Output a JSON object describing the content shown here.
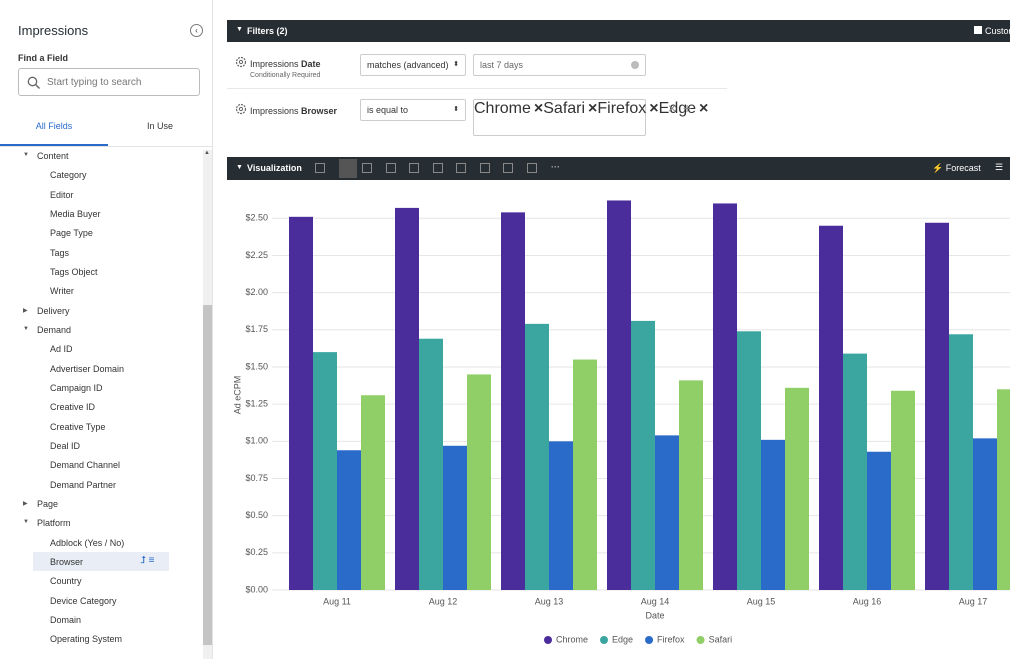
{
  "sidebar": {
    "title": "Impressions",
    "find_label": "Find a Field",
    "search_placeholder": "Start typing to search",
    "tabs": [
      "All Fields",
      "In Use"
    ],
    "groups": [
      {
        "label": "Content",
        "items": [
          "Category",
          "Editor",
          "Media Buyer",
          "Page Type",
          "Tags",
          "Tags Object",
          "Writer"
        ]
      },
      {
        "label": "Delivery"
      },
      {
        "label": "Demand",
        "items": [
          "Ad ID",
          "Advertiser Domain",
          "Campaign ID",
          "Creative ID",
          "Creative Type",
          "Deal ID",
          "Demand Channel",
          "Demand Partner"
        ]
      },
      {
        "label": "Page"
      },
      {
        "label": "Platform",
        "items": [
          "Adblock (Yes / No)",
          "Browser",
          "Country",
          "Device Category",
          "Domain",
          "Operating System"
        ]
      }
    ]
  },
  "filters": {
    "title": "Filters (2)",
    "custom_label": "Custom",
    "rows": [
      {
        "field": "Impressions",
        "field_bold": "Date",
        "note": "Conditionally Required",
        "operator": "matches (advanced)",
        "value": "last 7 days"
      },
      {
        "field": "Impressions",
        "field_bold": "Browser",
        "operator": "is equal to",
        "tags": [
          "Chrome",
          "Safari",
          "Firefox",
          "Edge"
        ]
      }
    ]
  },
  "visualization": {
    "title": "Visualization",
    "forecast_label": "Forecast"
  },
  "chart_data": {
    "type": "bar",
    "categories": [
      "Aug 11",
      "Aug 12",
      "Aug 13",
      "Aug 14",
      "Aug 15",
      "Aug 16",
      "Aug 17"
    ],
    "series": [
      {
        "name": "Chrome",
        "color": "#4a2d9b",
        "values": [
          2.51,
          2.57,
          2.54,
          2.62,
          2.6,
          2.45,
          2.47
        ]
      },
      {
        "name": "Edge",
        "color": "#3ba69f",
        "values": [
          1.6,
          1.69,
          1.79,
          1.81,
          1.74,
          1.59,
          1.72
        ]
      },
      {
        "name": "Firefox",
        "color": "#2a6ac9",
        "values": [
          0.94,
          0.97,
          1.0,
          1.04,
          1.01,
          0.93,
          1.02
        ]
      },
      {
        "name": "Safari",
        "color": "#90cf68",
        "values": [
          1.31,
          1.45,
          1.55,
          1.41,
          1.36,
          1.34,
          1.35
        ]
      }
    ],
    "xlabel": "Date",
    "ylabel": "Ad eCPM",
    "ylim": [
      0,
      2.65
    ],
    "yticks": [
      {
        "value": 0,
        "label": "$0.00"
      },
      {
        "value": 0.25,
        "label": "$0.25"
      },
      {
        "value": 0.5,
        "label": "$0.50"
      },
      {
        "value": 0.75,
        "label": "$0.75"
      },
      {
        "value": 1,
        "label": "$1.00"
      },
      {
        "value": 1.25,
        "label": "$1.25"
      },
      {
        "value": 1.5,
        "label": "$1.50"
      },
      {
        "value": 1.75,
        "label": "$1.75"
      },
      {
        "value": 2,
        "label": "$2.00"
      },
      {
        "value": 2.25,
        "label": "$2.25"
      },
      {
        "value": 2.5,
        "label": "$2.50"
      }
    ],
    "grid": true,
    "legend": "bottom"
  }
}
